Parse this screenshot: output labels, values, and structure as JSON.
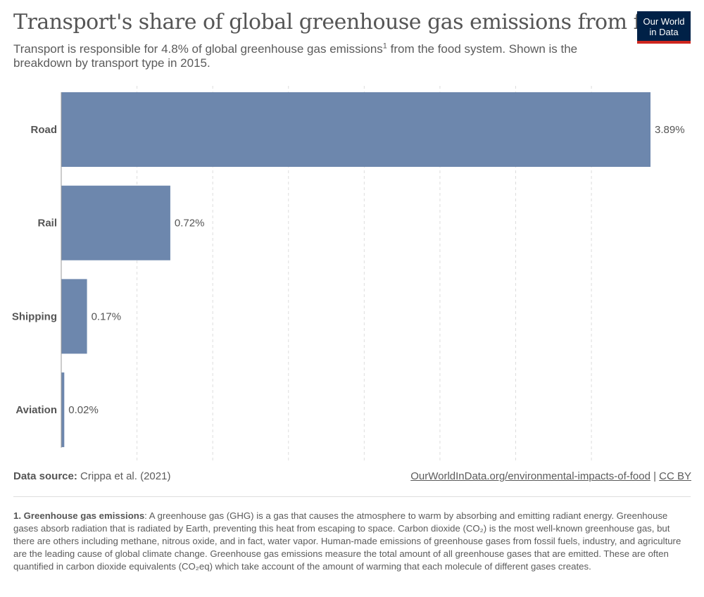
{
  "header": {
    "title": "Transport's share of global greenhouse gas emissions from food",
    "subtitle_before": "Transport is responsible for 4.8% of global greenhouse gas emissions",
    "subtitle_sup": "1",
    "subtitle_after": " from the food system. Shown is the breakdown by transport type in 2015."
  },
  "logo": {
    "line1": "Our World",
    "line2": "in Data",
    "bg_color": "#002147",
    "accent_color": "#ce261e"
  },
  "chart_data": {
    "type": "bar",
    "orientation": "horizontal",
    "categories": [
      "Road",
      "Rail",
      "Shipping",
      "Aviation"
    ],
    "values": [
      3.89,
      0.72,
      0.17,
      0.02
    ],
    "value_labels": [
      "3.89%",
      "0.72%",
      "0.17%",
      "0.02%"
    ],
    "unit": "%",
    "xlim": [
      0,
      3.89
    ],
    "grid": true,
    "bar_color": "#6d87ad",
    "grid_color": "#dddddd",
    "axis_color": "#999999"
  },
  "footer": {
    "source_label": "Data source:",
    "source_text": " Crippa et al. (2021)",
    "url": "OurWorldInData.org/environmental-impacts-of-food",
    "separator": " | ",
    "license": "CC BY"
  },
  "footnote": {
    "term": "1. Greenhouse gas emissions",
    "text": ": A greenhouse gas (GHG) is a gas that causes the atmosphere to warm by absorbing and emitting radiant energy. Greenhouse gases absorb radiation that is radiated by Earth, preventing this heat from escaping to space. Carbon dioxide (CO₂) is the most well-known greenhouse gas, but there are others including methane, nitrous oxide, and in fact, water vapor. Human-made emissions of greenhouse gases from fossil fuels, industry, and agriculture are the leading cause of global climate change. Greenhouse gas emissions measure the total amount of all greenhouse gases that are emitted. These are often quantified in carbon dioxide equivalents (CO₂eq) which take account of the amount of warming that each molecule of different gases creates."
  }
}
